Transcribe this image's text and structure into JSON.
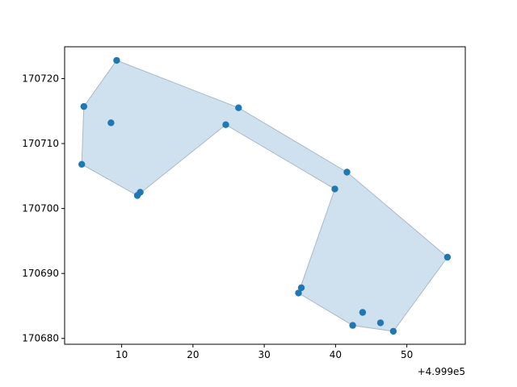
{
  "chart_data": {
    "type": "scatter",
    "title": "",
    "xlabel": "",
    "ylabel": "",
    "x_offset_label": "+4.999e5",
    "x_ticks": [
      10,
      20,
      30,
      40,
      50
    ],
    "x_tick_labels": [
      "10",
      "20",
      "30",
      "40",
      "50"
    ],
    "y_ticks": [
      170680,
      170690,
      170700,
      170710,
      170720
    ],
    "y_tick_labels": [
      "170680",
      "170690",
      "170700",
      "170710",
      "170720"
    ],
    "xlim": [
      2.0,
      58.2
    ],
    "ylim": [
      170679.1,
      170724.9
    ],
    "grid": false,
    "legend": "none",
    "polygon": {
      "fill": "#cfe0ee",
      "edge": "#a9b9c7",
      "vertices": [
        [
          9.3,
          170722.8
        ],
        [
          26.4,
          170715.5
        ],
        [
          41.6,
          170705.6
        ],
        [
          55.7,
          170692.5
        ],
        [
          48.1,
          170681.1
        ],
        [
          42.4,
          170682.0
        ],
        [
          34.8,
          170687.0
        ],
        [
          39.9,
          170703.0
        ],
        [
          24.6,
          170712.9
        ],
        [
          12.2,
          170702.0
        ],
        [
          4.4,
          170706.8
        ],
        [
          4.7,
          170715.7
        ]
      ]
    },
    "points_color": "#1f77b4",
    "points": [
      [
        9.3,
        170722.8
      ],
      [
        4.7,
        170715.7
      ],
      [
        8.5,
        170713.2
      ],
      [
        26.4,
        170715.5
      ],
      [
        24.6,
        170712.9
      ],
      [
        4.4,
        170706.8
      ],
      [
        12.6,
        170702.5
      ],
      [
        12.2,
        170702.0
      ],
      [
        41.6,
        170705.6
      ],
      [
        39.9,
        170703.0
      ],
      [
        55.7,
        170692.5
      ],
      [
        35.2,
        170687.8
      ],
      [
        34.8,
        170687.0
      ],
      [
        43.8,
        170684.0
      ],
      [
        46.3,
        170682.4
      ],
      [
        42.4,
        170682.0
      ],
      [
        48.1,
        170681.1
      ]
    ]
  }
}
